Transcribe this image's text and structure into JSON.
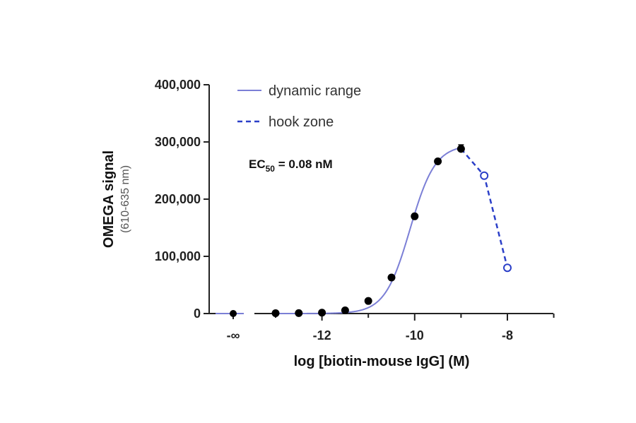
{
  "chart_data": {
    "type": "scatter",
    "ylabel": "OMEGA signal",
    "ylabel_sub": "(610-635 nm)",
    "xlabel": "log [biotin-mouse IgG] (M)",
    "ylim": [
      0,
      400000
    ],
    "xlim": [
      -14,
      -7
    ],
    "y_ticks": [
      0,
      100000,
      200000,
      300000,
      400000
    ],
    "y_tick_labels": [
      "0",
      "100,000",
      "200,000",
      "300,000",
      "400,000"
    ],
    "x_ticks": [
      -12,
      -10,
      -8
    ],
    "x_tick_labels": [
      "-12",
      "-10",
      "-8"
    ],
    "x_neg_inf_label": "-∞",
    "annotation": {
      "prefix": "EC",
      "sub": "50",
      "suffix": " = 0.08 nM"
    },
    "legend_position": "top-left",
    "series": [
      {
        "name": "dynamic range",
        "style": "solid",
        "marker": "filled-circle",
        "color": "#7b7fd6",
        "marker_color": "#000000",
        "points": [
          {
            "x": -13.0,
            "y": 600
          },
          {
            "x": -12.5,
            "y": 800
          },
          {
            "x": -12.0,
            "y": 1500
          },
          {
            "x": -11.5,
            "y": 5500
          },
          {
            "x": -11.0,
            "y": 22000
          },
          {
            "x": -10.5,
            "y": 63000
          },
          {
            "x": -10.0,
            "y": 170000
          },
          {
            "x": -9.5,
            "y": 266000
          },
          {
            "x": -9.0,
            "y": 288000,
            "err": 7000
          }
        ],
        "neg_inf_point": {
          "y": 0
        }
      },
      {
        "name": "hook zone",
        "style": "dashed",
        "marker": "open-circle",
        "color": "#2b3fc8",
        "points": [
          {
            "x": -9.0,
            "y": 288000
          },
          {
            "x": -8.5,
            "y": 241000
          },
          {
            "x": -8.0,
            "y": 80000
          }
        ]
      }
    ],
    "fit_curve": {
      "bottom": 0,
      "top": 295000,
      "log_ec50": -10.1,
      "hill": 1.6,
      "x_from": -13.0,
      "x_to": -9.0
    },
    "colors": {
      "fit": "#7b7fd6",
      "hook": "#2b3fc8",
      "axis": "#222222"
    }
  }
}
